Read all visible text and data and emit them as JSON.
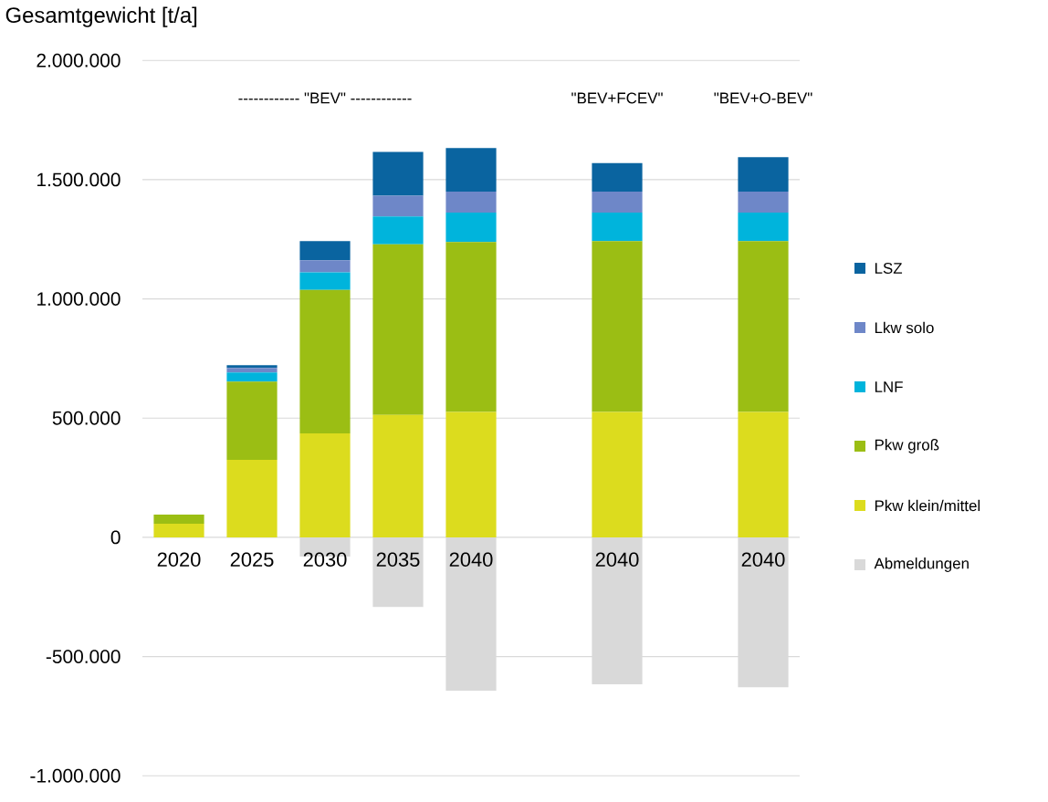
{
  "chart_data": {
    "type": "bar",
    "ylabel": "Gesamtgewicht [t/a]",
    "categories": [
      "2020",
      "2025",
      "2030",
      "2035",
      "2040",
      null,
      "2040",
      null,
      "2040"
    ],
    "stacked": true,
    "series": [
      {
        "name": "Pkw klein/mittel",
        "color": "#dcdc1e",
        "values": [
          57000,
          325000,
          436000,
          513000,
          526000,
          null,
          526000,
          null,
          526000
        ]
      },
      {
        "name": "Pkw groß",
        "color": "#9bbe14",
        "values": [
          38000,
          328000,
          602000,
          716000,
          712000,
          null,
          716000,
          null,
          716000
        ]
      },
      {
        "name": "LNF",
        "color": "#00b4dc",
        "values": [
          null,
          38000,
          73000,
          117000,
          124000,
          null,
          120000,
          null,
          120000
        ]
      },
      {
        "name": "Lkw solo",
        "color": "#6e87c8",
        "values": [
          null,
          19000,
          51000,
          87000,
          88000,
          null,
          88000,
          null,
          88000
        ]
      },
      {
        "name": "LSZ",
        "color": "#0a64a0",
        "values": [
          null,
          12000,
          80000,
          183000,
          183000,
          null,
          119000,
          null,
          144000
        ]
      },
      {
        "name": "Abmeldungen",
        "color": "#d9d9d9",
        "values": [
          null,
          null,
          -81000,
          -292000,
          -643000,
          null,
          -616000,
          null,
          -629000
        ]
      }
    ],
    "ylim": [
      -1000000,
      2000000
    ],
    "yticks": [
      {
        "value": -1000000,
        "label": "-1.000.000"
      },
      {
        "value": -500000,
        "label": "-500.000"
      },
      0,
      {
        "value": 500000,
        "label": "500.000"
      },
      {
        "value": 1000000,
        "label": "1.000.000"
      },
      {
        "value": 1500000,
        "label": "1.500.000"
      },
      {
        "value": 2000000,
        "label": "2.000.000"
      }
    ],
    "grid": "y",
    "legend": "right",
    "annotations": [
      "------------ \"BEV\" ------------",
      "\"BEV+FCEV\"",
      "\"BEV+O-BEV\""
    ]
  }
}
